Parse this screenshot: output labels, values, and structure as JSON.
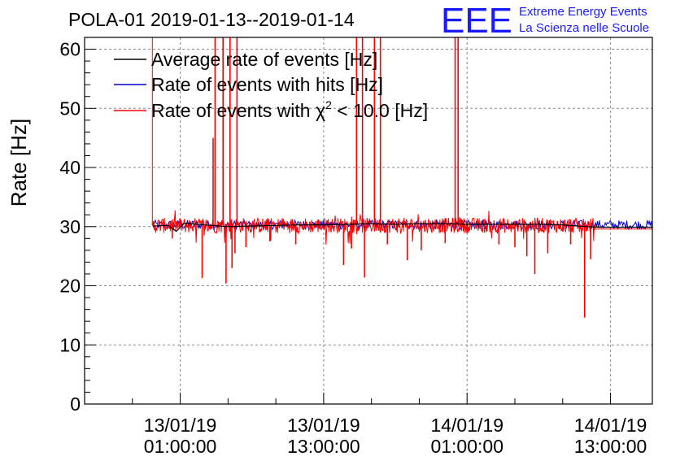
{
  "logo": {
    "mark": "EEE",
    "line1": "Extreme Energy Events",
    "line2": "La Scienza nelle Scuole",
    "color": "#1a1aff"
  },
  "chart_data": {
    "type": "line",
    "title": "POLA-01 2019-01-13--2019-01-14",
    "ylabel": "Rate [Hz]",
    "xlabel": "",
    "ylim": [
      0,
      62
    ],
    "xlim": [
      "2019-01-12 17:00",
      "2019-01-14 16:30"
    ],
    "grid": true,
    "legend_position": "top-left",
    "y_ticks": [
      0,
      10,
      20,
      30,
      40,
      50,
      60
    ],
    "x_ticks": [
      {
        "t": "2019-01-13 01:00",
        "label_date": "13/01/19",
        "label_time": "01:00:00"
      },
      {
        "t": "2019-01-13 13:00",
        "label_date": "13/01/19",
        "label_time": "13:00:00"
      },
      {
        "t": "2019-01-14 01:00",
        "label_date": "14/01/19",
        "label_time": "01:00:00"
      },
      {
        "t": "2019-01-14 13:00",
        "label_date": "14/01/19",
        "label_time": "13:00:00"
      }
    ],
    "series": [
      {
        "name": "Average rate of events [Hz]",
        "color": "#000000",
        "points": [
          [
            "2019-01-12 22:45",
            30.1
          ],
          [
            "2019-01-13 00:00",
            30.2
          ],
          [
            "2019-01-13 00:40",
            29.2
          ],
          [
            "2019-01-13 01:20",
            30.6
          ],
          [
            "2019-01-13 03:00",
            30.3
          ],
          [
            "2019-01-13 05:00",
            30.0
          ],
          [
            "2019-01-13 07:00",
            30.1
          ],
          [
            "2019-01-13 09:00",
            30.2
          ],
          [
            "2019-01-13 11:00",
            30.3
          ],
          [
            "2019-01-13 13:00",
            30.3
          ],
          [
            "2019-01-13 15:00",
            30.4
          ],
          [
            "2019-01-13 17:00",
            30.5
          ],
          [
            "2019-01-13 19:00",
            30.4
          ],
          [
            "2019-01-13 21:00",
            30.5
          ],
          [
            "2019-01-13 23:00",
            30.5
          ],
          [
            "2019-01-14 01:00",
            30.4
          ],
          [
            "2019-01-14 03:00",
            30.4
          ],
          [
            "2019-01-14 05:00",
            30.4
          ],
          [
            "2019-01-14 07:00",
            30.4
          ],
          [
            "2019-01-14 09:00",
            30.3
          ],
          [
            "2019-01-14 11:00",
            30.0
          ],
          [
            "2019-01-14 12:00",
            29.9
          ],
          [
            "2019-01-14 16:30",
            29.9
          ]
        ]
      },
      {
        "name": "Rate of events with hits [Hz]",
        "color": "#0000cc",
        "baseline": 30.3,
        "start": "2019-01-12 22:40",
        "end": "2019-01-14 16:30"
      },
      {
        "name": "Rate of events with χ² < 10.0 [Hz]",
        "legend_prefix": "Rate of events with ",
        "legend_chi": "χ",
        "legend_sup": "2",
        "legend_suffix": " < 10.0 [Hz]",
        "color": "#ff0000",
        "baseline": 30.2,
        "start": "2019-01-12 22:40",
        "end": "2019-01-14 16:30",
        "tail_value": 29.6,
        "tail_start": "2019-01-14 11:40",
        "initial_spike": [
          "2019-01-12 22:40",
          62
        ],
        "spikes_up": [
          [
            "2019-01-13 03:45",
            45
          ],
          [
            "2019-01-13 03:55",
            62
          ],
          [
            "2019-01-13 04:35",
            62
          ],
          [
            "2019-01-13 05:10",
            62
          ],
          [
            "2019-01-13 05:45",
            62
          ],
          [
            "2019-01-13 15:45",
            62
          ],
          [
            "2019-01-13 16:15",
            62
          ],
          [
            "2019-01-13 17:15",
            62
          ],
          [
            "2019-01-13 17:45",
            62
          ],
          [
            "2019-01-14 00:00",
            62
          ],
          [
            "2019-01-14 00:15",
            62
          ]
        ],
        "dips": [
          [
            "2019-01-13 00:20",
            28.0
          ],
          [
            "2019-01-13 02:50",
            21.3
          ],
          [
            "2019-01-13 04:50",
            20.4
          ],
          [
            "2019-01-13 05:20",
            23.0
          ],
          [
            "2019-01-13 05:35",
            25.5
          ],
          [
            "2019-01-13 06:30",
            26.5
          ],
          [
            "2019-01-13 08:30",
            27.5
          ],
          [
            "2019-01-13 10:40",
            27.0
          ],
          [
            "2019-01-13 14:40",
            23.5
          ],
          [
            "2019-01-13 15:20",
            26.3
          ],
          [
            "2019-01-13 16:25",
            21.4
          ],
          [
            "2019-01-13 18:20",
            27.0
          ],
          [
            "2019-01-13 20:00",
            24.3
          ],
          [
            "2019-01-13 21:10",
            26.0
          ],
          [
            "2019-01-13 23:10",
            27.2
          ],
          [
            "2019-01-14 03:40",
            27.0
          ],
          [
            "2019-01-14 05:00",
            26.5
          ],
          [
            "2019-01-14 06:00",
            25.0
          ],
          [
            "2019-01-14 06:40",
            22.0
          ],
          [
            "2019-01-14 07:45",
            25.5
          ],
          [
            "2019-01-14 09:40",
            27.0
          ],
          [
            "2019-01-14 10:50",
            14.6
          ],
          [
            "2019-01-14 11:20",
            24.5
          ]
        ]
      }
    ]
  }
}
